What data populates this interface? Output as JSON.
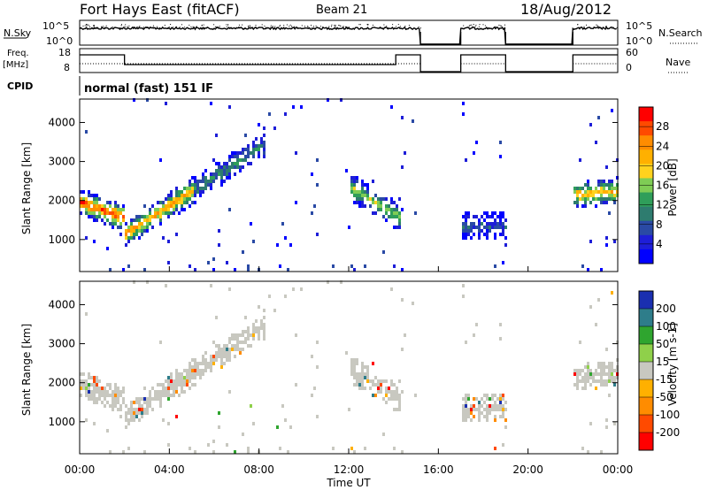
{
  "header": {
    "station": "Fort Hays East (fitACF)",
    "beam": "Beam 21",
    "date": "18/Aug/2012"
  },
  "meta_panels": {
    "nsky_label": "N.Sky",
    "nsky_ticks": [
      "10^5",
      "10^0"
    ],
    "nsearch_label": "N.Search",
    "nsearch_ticks": [
      "10^5",
      "10^0"
    ],
    "freq_label_1": "Freq.",
    "freq_label_2": "[MHz]",
    "freq_ticks": [
      "18",
      "8"
    ],
    "nave_label": "Nave",
    "nave_ticks": [
      "60",
      "0"
    ],
    "cpid_label": "CPID",
    "cpid_text": "normal (fast) 151 IF"
  },
  "chart_data": [
    {
      "type": "heatmap",
      "name": "power",
      "ylabel": "Slant Range [km]",
      "yticks": [
        "4000",
        "3000",
        "2000",
        "1000"
      ],
      "ylim": [
        180,
        4600
      ],
      "colorbar": {
        "label": "Power [dB]",
        "ticks": [
          "28",
          "24",
          "20",
          "16",
          "12",
          "8",
          "4"
        ],
        "colors": [
          "#ff0000",
          "#ff4a00",
          "#ff8c00",
          "#ffb000",
          "#ffd21e",
          "#7fcc55",
          "#2f9e5a",
          "#2e7c6f",
          "#2a4aa5",
          "#1e1ed8",
          "#0000ff"
        ]
      },
      "echo_bands": [
        {
          "t0": 0.0,
          "t1": 2.0,
          "r0": 1900,
          "r1": 1500,
          "p": 0.9
        },
        {
          "t0": 2.0,
          "t1": 5.0,
          "r0": 1100,
          "r1": 2200,
          "p": 0.75
        },
        {
          "t0": 5.0,
          "t1": 8.2,
          "r0": 2200,
          "r1": 3400,
          "p": 0.35
        },
        {
          "t0": 12.0,
          "t1": 14.3,
          "r0": 2300,
          "r1": 1500,
          "p": 0.55
        },
        {
          "t0": 17.0,
          "t1": 19.0,
          "r0": 1300,
          "r1": 1300,
          "p": 0.25
        },
        {
          "t0": 22.0,
          "t1": 24.0,
          "r0": 2100,
          "r1": 2200,
          "p": 0.7
        }
      ]
    },
    {
      "type": "heatmap",
      "name": "velocity",
      "xlabel": "Time UT",
      "ylabel": "Slant Range [km]",
      "xticks": [
        "00:00",
        "04:00",
        "08:00",
        "12:00",
        "16:00",
        "20:00",
        "00:00"
      ],
      "xlim": [
        0,
        24
      ],
      "yticks": [
        "4000",
        "3000",
        "2000",
        "1000"
      ],
      "ylim": [
        180,
        4600
      ],
      "colorbar": {
        "label": "Velocity [m s-1]",
        "ticks": [
          "200",
          "100",
          "50",
          "15",
          "-15",
          "-50",
          "-100",
          "-200"
        ],
        "colors": [
          "#1a2fb0",
          "#2e7d8a",
          "#2fa52f",
          "#8fd04a",
          "#c8c8c0",
          "#ffb000",
          "#ff8c00",
          "#ff4a00",
          "#ff0000"
        ]
      }
    }
  ],
  "data_gaps": [
    [
      15.2,
      17.0
    ],
    [
      19.0,
      22.0
    ]
  ]
}
